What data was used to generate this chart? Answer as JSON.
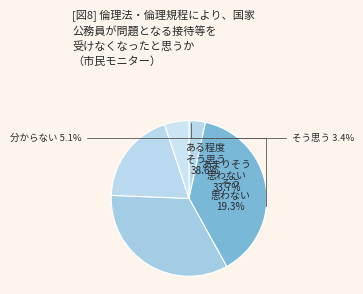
{
  "title_lines": [
    "[図8] 倫理法・倫理規程により、国家",
    "公務員が問題となる接待等を",
    "受けなくなったと思うか",
    "（市民モニター）"
  ],
  "values": [
    3.4,
    38.6,
    33.7,
    19.3,
    5.1
  ],
  "colors": [
    "#b8d9ec",
    "#7ab8d8",
    "#a2cde4",
    "#b8d9ee",
    "#cce5f5"
  ],
  "background_color": "#fdf5ec",
  "text_color": "#2a2a2a",
  "title_fontsize": 8.0,
  "label_fontsize": 7.2,
  "external_fontsize": 6.8
}
